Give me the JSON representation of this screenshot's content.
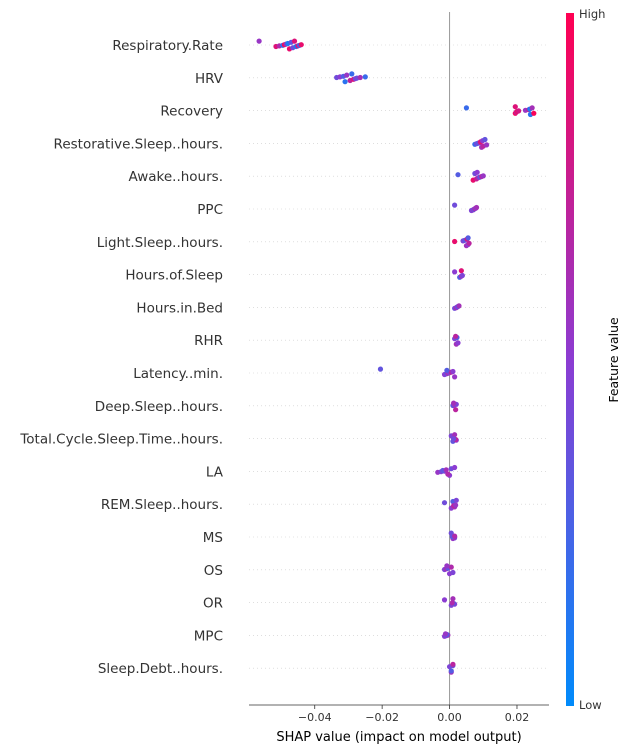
{
  "chart_data": {
    "type": "scatter",
    "subtype": "shap-beeswarm",
    "xlabel": "SHAP value (impact on model output)",
    "xlim": [
      -0.0595,
      0.0295
    ],
    "x_ticks": [
      -0.04,
      -0.02,
      0.0,
      0.02
    ],
    "x_tick_labels": [
      "−0.04",
      "−0.02",
      "0.00",
      "0.02"
    ],
    "colorbar": {
      "title": "Feature value",
      "high_label": "High",
      "low_label": "Low",
      "low_color": "#008bfb",
      "mid_color": "#8c3cd2",
      "high_color": "#ff0052"
    },
    "zero_line": true,
    "row_gridlines": true,
    "features": [
      {
        "name": "Respiratory.Rate",
        "points": [
          [
            -0.0565,
            0.55
          ],
          [
            -0.0515,
            0.85
          ],
          [
            -0.0505,
            0.65
          ],
          [
            -0.0495,
            0.15
          ],
          [
            -0.049,
            0.95
          ],
          [
            -0.0485,
            0.6
          ],
          [
            -0.048,
            0.1
          ],
          [
            -0.0475,
            0.9
          ],
          [
            -0.047,
            0.35
          ],
          [
            -0.0465,
            0.4
          ],
          [
            -0.046,
            0.85
          ],
          [
            -0.0455,
            0.1
          ],
          [
            -0.045,
            0.8
          ],
          [
            -0.0445,
            0.2
          ],
          [
            -0.044,
            0.9
          ]
        ]
      },
      {
        "name": "HRV",
        "points": [
          [
            -0.0335,
            0.4
          ],
          [
            -0.0325,
            0.5
          ],
          [
            -0.0315,
            0.3
          ],
          [
            -0.031,
            0.15
          ],
          [
            -0.0305,
            0.55
          ],
          [
            -0.0295,
            0.7
          ],
          [
            -0.029,
            0.2
          ],
          [
            -0.0285,
            0.85
          ],
          [
            -0.028,
            0.45
          ],
          [
            -0.0275,
            0.4
          ],
          [
            -0.0265,
            0.6
          ],
          [
            -0.025,
            0.2
          ]
        ]
      },
      {
        "name": "Recovery",
        "points": [
          [
            0.005,
            0.2
          ],
          [
            0.0195,
            0.95
          ],
          [
            0.0195,
            0.85
          ],
          [
            0.0198,
            0.7
          ],
          [
            0.02,
            0.9
          ],
          [
            0.0205,
            0.8
          ],
          [
            0.0225,
            0.55
          ],
          [
            0.0235,
            0.75
          ],
          [
            0.0238,
            0.1
          ],
          [
            0.024,
            0.15
          ],
          [
            0.0245,
            0.6
          ],
          [
            0.025,
            0.98
          ]
        ]
      },
      {
        "name": "Restorative.Sleep..hours.",
        "points": [
          [
            0.0075,
            0.2
          ],
          [
            0.008,
            0.4
          ],
          [
            0.0085,
            0.3
          ],
          [
            0.009,
            0.55
          ],
          [
            0.0092,
            0.85
          ],
          [
            0.0095,
            0.6
          ],
          [
            0.0098,
            0.5
          ],
          [
            0.01,
            0.7
          ],
          [
            0.0105,
            0.35
          ],
          [
            0.011,
            0.55
          ]
        ]
      },
      {
        "name": "Awake..hours.",
        "points": [
          [
            0.0025,
            0.3
          ],
          [
            0.007,
            0.9
          ],
          [
            0.0075,
            0.4
          ],
          [
            0.008,
            0.75
          ],
          [
            0.0082,
            0.5
          ],
          [
            0.0085,
            0.6
          ],
          [
            0.009,
            0.35
          ],
          [
            0.0095,
            0.65
          ],
          [
            0.01,
            0.55
          ]
        ]
      },
      {
        "name": "PPC",
        "points": [
          [
            0.0015,
            0.4
          ],
          [
            0.0065,
            0.45
          ],
          [
            0.007,
            0.55
          ],
          [
            0.0072,
            0.35
          ],
          [
            0.0075,
            0.65
          ],
          [
            0.0078,
            0.5
          ],
          [
            0.008,
            0.6
          ]
        ]
      },
      {
        "name": "Light.Sleep..hours.",
        "points": [
          [
            0.0015,
            0.9
          ],
          [
            0.004,
            0.45
          ],
          [
            0.0045,
            0.35
          ],
          [
            0.005,
            0.6
          ],
          [
            0.0052,
            0.8
          ],
          [
            0.0055,
            0.5
          ],
          [
            0.0055,
            0.3
          ],
          [
            0.0058,
            0.7
          ]
        ]
      },
      {
        "name": "Hours.of.Sleep",
        "points": [
          [
            0.0015,
            0.5
          ],
          [
            0.003,
            0.3
          ],
          [
            0.0035,
            0.85
          ],
          [
            0.0035,
            0.6
          ],
          [
            0.0038,
            0.45
          ]
        ]
      },
      {
        "name": "Hours.in.Bed",
        "points": [
          [
            0.0015,
            0.4
          ],
          [
            0.002,
            0.65
          ],
          [
            0.0022,
            0.5
          ],
          [
            0.0025,
            0.35
          ],
          [
            0.0028,
            0.6
          ]
        ]
      },
      {
        "name": "RHR",
        "points": [
          [
            0.0015,
            0.45
          ],
          [
            0.002,
            0.6
          ],
          [
            0.0022,
            0.3
          ],
          [
            0.0025,
            0.5
          ],
          [
            0.0018,
            0.7
          ]
        ]
      },
      {
        "name": "Latency..min.",
        "points": [
          [
            -0.0205,
            0.35
          ],
          [
            -0.0015,
            0.5
          ],
          [
            -0.001,
            0.4
          ],
          [
            -0.0005,
            0.6
          ],
          [
            0.0,
            0.45
          ],
          [
            0.0005,
            0.7
          ],
          [
            0.001,
            0.5
          ],
          [
            0.0015,
            0.55
          ],
          [
            -0.0008,
            0.3
          ]
        ]
      },
      {
        "name": "Deep.Sleep..hours.",
        "points": [
          [
            0.001,
            0.35
          ],
          [
            0.0015,
            0.55
          ],
          [
            0.002,
            0.45
          ],
          [
            0.0018,
            0.7
          ],
          [
            0.0012,
            0.6
          ]
        ]
      },
      {
        "name": "Total.Cycle.Sleep.Time..hours.",
        "points": [
          [
            0.0005,
            0.45
          ],
          [
            0.001,
            0.35
          ],
          [
            0.0015,
            0.6
          ],
          [
            0.002,
            0.5
          ],
          [
            0.0018,
            0.7
          ],
          [
            0.0012,
            0.4
          ]
        ]
      },
      {
        "name": "LA",
        "points": [
          [
            -0.0035,
            0.55
          ],
          [
            -0.0025,
            0.45
          ],
          [
            -0.0015,
            0.5
          ],
          [
            -0.002,
            0.35
          ],
          [
            -0.001,
            0.6
          ],
          [
            0.0,
            0.5
          ],
          [
            0.0005,
            0.4
          ],
          [
            -0.0005,
            0.65
          ],
          [
            0.0015,
            0.5
          ]
        ]
      },
      {
        "name": "REM.Sleep..hours.",
        "points": [
          [
            -0.0015,
            0.4
          ],
          [
            0.0005,
            0.5
          ],
          [
            0.001,
            0.3
          ],
          [
            0.0015,
            0.6
          ],
          [
            0.002,
            0.45
          ],
          [
            0.0012,
            0.7
          ],
          [
            0.0018,
            0.55
          ]
        ]
      },
      {
        "name": "MS",
        "points": [
          [
            0.0005,
            0.4
          ],
          [
            0.001,
            0.55
          ],
          [
            0.0015,
            0.45
          ],
          [
            0.0012,
            0.6
          ],
          [
            0.0008,
            0.35
          ],
          [
            0.0015,
            0.65
          ]
        ]
      },
      {
        "name": "OS",
        "points": [
          [
            -0.0015,
            0.45
          ],
          [
            -0.001,
            0.6
          ],
          [
            -0.0005,
            0.35
          ],
          [
            0.0,
            0.5
          ],
          [
            0.0005,
            0.65
          ],
          [
            0.001,
            0.45
          ],
          [
            -0.0008,
            0.55
          ]
        ]
      },
      {
        "name": "OR",
        "points": [
          [
            -0.0015,
            0.5
          ],
          [
            0.0005,
            0.45
          ],
          [
            0.001,
            0.6
          ],
          [
            0.0015,
            0.5
          ],
          [
            0.0012,
            0.35
          ],
          [
            0.0008,
            0.65
          ]
        ]
      },
      {
        "name": "MPC",
        "points": [
          [
            -0.0015,
            0.5
          ],
          [
            -0.001,
            0.4
          ],
          [
            -0.0005,
            0.6
          ],
          [
            -0.0008,
            0.3
          ],
          [
            -0.0012,
            0.55
          ]
        ]
      },
      {
        "name": "Sleep.Debt..hours.",
        "points": [
          [
            0.0,
            0.45
          ],
          [
            0.0005,
            0.6
          ],
          [
            0.001,
            0.4
          ],
          [
            0.0005,
            0.3
          ],
          [
            0.001,
            0.7
          ]
        ]
      }
    ]
  }
}
